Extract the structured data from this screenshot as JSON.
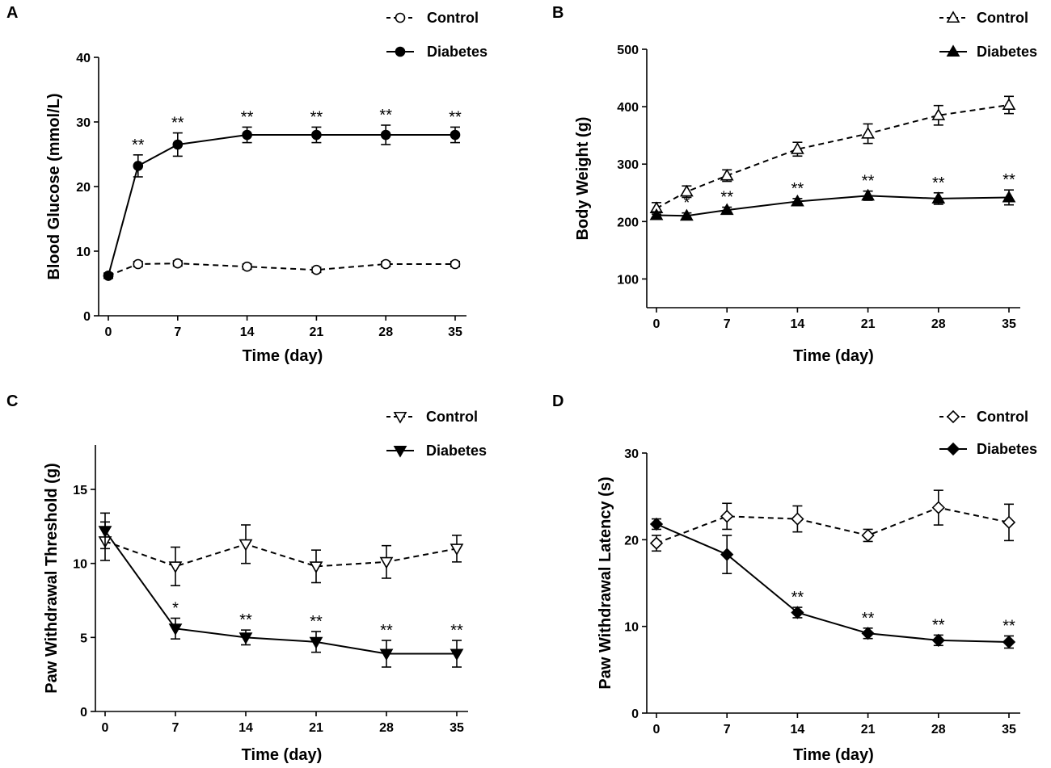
{
  "chart_data": [
    {
      "type": "line",
      "panel": "A",
      "xlabel": "Time (day)",
      "ylabel": "Blood Glucose (mmol/L)",
      "ylim": [
        0,
        40
      ],
      "yticks": [
        0,
        10,
        20,
        30,
        40
      ],
      "xticks": [
        0,
        7,
        14,
        21,
        28,
        35
      ],
      "legend_position": "top-right",
      "series": [
        {
          "name": "Control",
          "marker": "circle-open",
          "style": "dashed",
          "x": [
            0,
            3,
            7,
            14,
            21,
            28,
            35
          ],
          "y": [
            6.2,
            8.0,
            8.1,
            7.6,
            7.1,
            8.0,
            8.0
          ],
          "err": [
            0.4,
            0.4,
            0.4,
            0.4,
            0.4,
            0.4,
            0.4
          ]
        },
        {
          "name": "Diabetes",
          "marker": "circle-filled",
          "style": "solid",
          "x": [
            0,
            3,
            7,
            14,
            21,
            28,
            35
          ],
          "y": [
            6.2,
            23.2,
            26.5,
            28.0,
            28.0,
            28.0,
            28.0
          ],
          "err": [
            0.4,
            1.7,
            1.8,
            1.2,
            1.2,
            1.5,
            1.2
          ]
        }
      ],
      "annotations": [
        {
          "x": 3,
          "text": "**"
        },
        {
          "x": 7,
          "text": "**"
        },
        {
          "x": 14,
          "text": "**"
        },
        {
          "x": 21,
          "text": "**"
        },
        {
          "x": 28,
          "text": "**"
        },
        {
          "x": 35,
          "text": "**"
        }
      ]
    },
    {
      "type": "line",
      "panel": "B",
      "xlabel": "Time (day)",
      "ylabel": "Body Weight (g)",
      "ylim": [
        50,
        500
      ],
      "yticks": [
        100,
        200,
        300,
        400,
        500
      ],
      "xticks": [
        0,
        7,
        14,
        21,
        28,
        35
      ],
      "legend_position": "top-right",
      "series": [
        {
          "name": "Control",
          "marker": "triangle-up-open",
          "style": "dashed",
          "x": [
            0,
            3,
            7,
            14,
            21,
            28,
            35
          ],
          "y": [
            223,
            252,
            280,
            326,
            353,
            385,
            403
          ],
          "err": [
            10,
            10,
            10,
            12,
            17,
            17,
            15
          ]
        },
        {
          "name": "Diabetes",
          "marker": "triangle-up-filled",
          "style": "solid",
          "x": [
            0,
            3,
            7,
            14,
            21,
            28,
            35
          ],
          "y": [
            211,
            210,
            220,
            235,
            245,
            240,
            242
          ],
          "err": [
            6,
            5,
            5,
            5,
            8,
            10,
            13
          ]
        }
      ],
      "annotations": [
        {
          "x": 3,
          "text": "*"
        },
        {
          "x": 7,
          "text": "**"
        },
        {
          "x": 14,
          "text": "**"
        },
        {
          "x": 21,
          "text": "**"
        },
        {
          "x": 28,
          "text": "**"
        },
        {
          "x": 35,
          "text": "**"
        }
      ]
    },
    {
      "type": "line",
      "panel": "C",
      "xlabel": "Time (day)",
      "ylabel": "Paw Withdrawal Threshold (g)",
      "ylim": [
        0,
        18
      ],
      "yticks": [
        0,
        5,
        10,
        15
      ],
      "xticks": [
        0,
        7,
        14,
        21,
        28,
        35
      ],
      "legend_position": "top-right",
      "series": [
        {
          "name": "Control",
          "marker": "triangle-down-open",
          "style": "dashed",
          "x": [
            0,
            7,
            14,
            21,
            28,
            35
          ],
          "y": [
            11.5,
            9.8,
            11.3,
            9.8,
            10.1,
            11.0
          ],
          "err": [
            1.3,
            1.3,
            1.3,
            1.1,
            1.1,
            0.9
          ]
        },
        {
          "name": "Diabetes",
          "marker": "triangle-down-filled",
          "style": "solid",
          "x": [
            0,
            7,
            14,
            21,
            28,
            35
          ],
          "y": [
            12.2,
            5.6,
            5.0,
            4.7,
            3.9,
            3.9
          ],
          "err": [
            1.2,
            0.7,
            0.5,
            0.7,
            0.9,
            0.9
          ]
        }
      ],
      "annotations": [
        {
          "x": 7,
          "text": "*"
        },
        {
          "x": 14,
          "text": "**"
        },
        {
          "x": 21,
          "text": "**"
        },
        {
          "x": 28,
          "text": "**"
        },
        {
          "x": 35,
          "text": "**"
        }
      ]
    },
    {
      "type": "line",
      "panel": "D",
      "xlabel": "Time (day)",
      "ylabel": "Paw Withdrawal Latency (s)",
      "ylim": [
        0,
        30
      ],
      "yticks": [
        0,
        10,
        20,
        30
      ],
      "xticks": [
        0,
        7,
        14,
        21,
        28,
        35
      ],
      "legend_position": "top-right",
      "series": [
        {
          "name": "Control",
          "marker": "diamond-open",
          "style": "dashed",
          "x": [
            0,
            7,
            14,
            21,
            28,
            35
          ],
          "y": [
            19.6,
            22.7,
            22.4,
            20.5,
            23.7,
            22.0
          ],
          "err": [
            0.9,
            1.5,
            1.5,
            0.7,
            2.0,
            2.1
          ]
        },
        {
          "name": "Diabetes",
          "marker": "diamond-filled",
          "style": "solid",
          "x": [
            0,
            7,
            14,
            21,
            28,
            35
          ],
          "y": [
            21.8,
            18.3,
            11.6,
            9.2,
            8.4,
            8.2
          ],
          "err": [
            0.6,
            2.2,
            0.6,
            0.6,
            0.6,
            0.7
          ]
        }
      ],
      "annotations": [
        {
          "x": 14,
          "text": "**"
        },
        {
          "x": 21,
          "text": "**"
        },
        {
          "x": 28,
          "text": "**"
        },
        {
          "x": 35,
          "text": "**"
        }
      ]
    }
  ]
}
